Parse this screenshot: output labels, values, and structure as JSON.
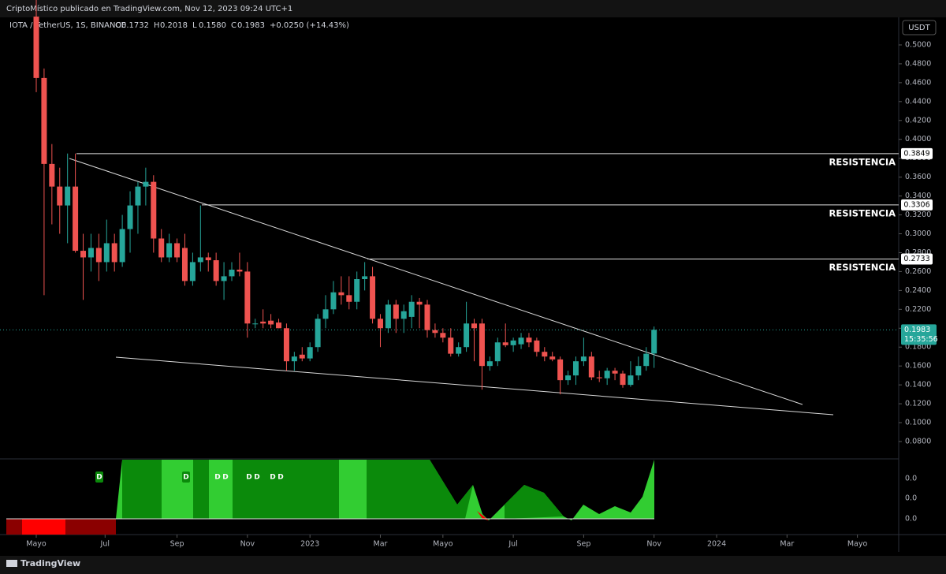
{
  "header": {
    "attribution": "CriptoMístico publicado en TradingView.com, Nov 12, 2023 09:24 UTC+1"
  },
  "footer": {
    "brand": "TradingView"
  },
  "chart_data": {
    "type": "candlestick",
    "symbol": "IOTA / TetherUS, 1S, BINANCE",
    "ohlc_legend": [
      {
        "key": "O",
        "text": "0.1732"
      },
      {
        "key": "H",
        "text": "0.2018"
      },
      {
        "key": "L",
        "text": "0.1580"
      },
      {
        "key": "C",
        "text": "0.1983"
      }
    ],
    "change": "+0.0250 (+14.43%)",
    "currency": "USDT",
    "last_price": 0.1983,
    "countdown": "15:35:56",
    "colors": {
      "up": "#26a69a",
      "down": "#ef5350"
    },
    "categories": [
      null,
      null,
      null,
      null,
      null,
      null,
      null,
      null,
      null,
      null,
      null,
      null,
      null,
      null,
      null,
      null,
      null,
      null,
      null,
      null,
      null,
      null,
      null,
      null,
      null,
      null,
      null,
      null,
      null,
      null,
      null,
      null,
      null,
      null,
      null,
      null,
      null,
      null,
      null,
      null,
      null,
      null,
      null,
      null,
      null,
      null,
      null,
      null,
      null,
      null,
      null,
      null,
      null,
      null,
      null,
      null,
      null,
      null,
      null,
      null,
      null,
      null,
      null,
      null,
      null,
      null,
      null,
      null,
      null,
      null,
      null,
      null,
      null,
      null,
      null,
      null,
      null,
      null,
      null,
      null
    ],
    "open": [
      0.53,
      0.465,
      0.374,
      0.35,
      0.33,
      0.35,
      0.282,
      0.275,
      0.285,
      0.27,
      0.29,
      0.27,
      0.305,
      0.33,
      0.35,
      0.355,
      0.295,
      0.275,
      0.29,
      0.285,
      0.25,
      0.27,
      0.275,
      0.272,
      0.25,
      0.255,
      0.262,
      0.26,
      0.205,
      0.207,
      0.208,
      0.206,
      0.2,
      0.165,
      0.172,
      0.168,
      0.18,
      0.21,
      0.22,
      0.238,
      0.235,
      0.228,
      0.252,
      0.255,
      0.21,
      0.2,
      0.225,
      0.21,
      0.212,
      0.228,
      0.225,
      0.198,
      0.195,
      0.19,
      0.173,
      0.18,
      0.205,
      0.205,
      0.16,
      0.165,
      0.185,
      0.182,
      0.183,
      0.19,
      0.187,
      0.175,
      0.17,
      0.167,
      0.145,
      0.15,
      0.165,
      0.17,
      0.148,
      0.147,
      0.155,
      0.152,
      0.14,
      0.15,
      0.16,
      0.1732
    ],
    "high": [
      0.56,
      0.475,
      0.395,
      0.37,
      0.385,
      0.385,
      0.3,
      0.3,
      0.3,
      0.315,
      0.3,
      0.32,
      0.345,
      0.355,
      0.37,
      0.362,
      0.305,
      0.3,
      0.295,
      0.3,
      0.28,
      0.33,
      0.28,
      0.28,
      0.27,
      0.27,
      0.28,
      0.27,
      0.21,
      0.22,
      0.215,
      0.21,
      0.205,
      0.175,
      0.18,
      0.185,
      0.215,
      0.235,
      0.25,
      0.255,
      0.255,
      0.26,
      0.27,
      0.265,
      0.215,
      0.23,
      0.23,
      0.225,
      0.235,
      0.232,
      0.23,
      0.205,
      0.2,
      0.2,
      0.185,
      0.228,
      0.21,
      0.21,
      0.17,
      0.19,
      0.205,
      0.19,
      0.195,
      0.195,
      0.19,
      0.18,
      0.175,
      0.17,
      0.155,
      0.17,
      0.19,
      0.175,
      0.155,
      0.158,
      0.158,
      0.155,
      0.165,
      0.17,
      0.18,
      0.2018
    ],
    "low": [
      0.45,
      0.235,
      0.31,
      0.3,
      0.29,
      0.28,
      0.23,
      0.26,
      0.25,
      0.26,
      0.26,
      0.265,
      0.28,
      0.3,
      0.33,
      0.28,
      0.27,
      0.27,
      0.27,
      0.245,
      0.245,
      0.26,
      0.26,
      0.245,
      0.23,
      0.25,
      0.255,
      0.19,
      0.2,
      0.2,
      0.2,
      0.2,
      0.155,
      0.155,
      0.165,
      0.165,
      0.175,
      0.2,
      0.215,
      0.225,
      0.22,
      0.22,
      0.24,
      0.205,
      0.18,
      0.195,
      0.195,
      0.195,
      0.2,
      0.2,
      0.19,
      0.19,
      0.185,
      0.17,
      0.17,
      0.175,
      0.165,
      0.135,
      0.155,
      0.16,
      0.18,
      0.175,
      0.178,
      0.18,
      0.17,
      0.165,
      0.165,
      0.13,
      0.14,
      0.14,
      0.16,
      0.145,
      0.143,
      0.14,
      0.145,
      0.137,
      0.138,
      0.145,
      0.155,
      0.158
    ],
    "close": [
      0.465,
      0.374,
      0.35,
      0.33,
      0.35,
      0.282,
      0.275,
      0.285,
      0.27,
      0.29,
      0.27,
      0.305,
      0.33,
      0.35,
      0.355,
      0.295,
      0.275,
      0.29,
      0.275,
      0.25,
      0.27,
      0.275,
      0.272,
      0.25,
      0.255,
      0.262,
      0.26,
      0.205,
      0.205,
      0.205,
      0.204,
      0.2,
      0.165,
      0.17,
      0.168,
      0.18,
      0.21,
      0.22,
      0.238,
      0.235,
      0.228,
      0.252,
      0.255,
      0.21,
      0.2,
      0.225,
      0.21,
      0.218,
      0.228,
      0.225,
      0.198,
      0.195,
      0.19,
      0.173,
      0.18,
      0.205,
      0.2,
      0.16,
      0.165,
      0.185,
      0.182,
      0.187,
      0.19,
      0.185,
      0.175,
      0.17,
      0.167,
      0.145,
      0.15,
      0.165,
      0.17,
      0.148,
      0.147,
      0.155,
      0.152,
      0.14,
      0.15,
      0.16,
      0.173,
      0.1983
    ],
    "ylim": [
      0.0633,
      0.5292
    ],
    "yticks": [
      {
        "value": 0.5,
        "label": "0.5000"
      },
      {
        "value": 0.48,
        "label": "0.4800"
      },
      {
        "value": 0.46,
        "label": "0.4600"
      },
      {
        "value": 0.44,
        "label": "0.4400"
      },
      {
        "value": 0.42,
        "label": "0.4200"
      },
      {
        "value": 0.4,
        "label": "0.4000"
      },
      {
        "value": 0.38,
        "label": "0.3800"
      },
      {
        "value": 0.36,
        "label": "0.3600"
      },
      {
        "value": 0.34,
        "label": "0.3400"
      },
      {
        "value": 0.32,
        "label": "0.3200"
      },
      {
        "value": 0.3,
        "label": "0.3000"
      },
      {
        "value": 0.28,
        "label": "0.2800"
      },
      {
        "value": 0.26,
        "label": "0.2600"
      },
      {
        "value": 0.24,
        "label": "0.2400"
      },
      {
        "value": 0.22,
        "label": "0.2200"
      },
      {
        "value": 0.2,
        "label": "0.2000"
      },
      {
        "value": 0.18,
        "label": "0.1800"
      },
      {
        "value": 0.16,
        "label": "0.1600"
      },
      {
        "value": 0.14,
        "label": "0.1400"
      },
      {
        "value": 0.12,
        "label": "0.1200"
      },
      {
        "value": 0.1,
        "label": "0.1000"
      },
      {
        "value": 0.08,
        "label": "0.0800"
      }
    ],
    "xticks": [
      {
        "value": 0,
        "label": "Mayo"
      },
      {
        "value": 8.8,
        "label": "Jul"
      },
      {
        "value": 18,
        "label": "Sep"
      },
      {
        "value": 27,
        "label": "Nov"
      },
      {
        "value": 35,
        "label": "2023"
      },
      {
        "value": 44,
        "label": "Mar"
      },
      {
        "value": 52,
        "label": "Mayo"
      },
      {
        "value": 61,
        "label": "Jul"
      },
      {
        "value": 70,
        "label": "Sep"
      },
      {
        "value": 79,
        "label": "Nov"
      },
      {
        "value": 87,
        "label": "2024"
      },
      {
        "value": 96,
        "label": "Mar"
      },
      {
        "value": 105,
        "label": "Mayo"
      }
    ],
    "levels": [
      {
        "value": 0.3849,
        "label": "0.3849",
        "text": "RESISTENCIA"
      },
      {
        "value": 0.3306,
        "label": "0.3306",
        "text": "RESISTENCIA"
      },
      {
        "value": 0.2733,
        "label": "0.2733",
        "text": "RESISTENCIA"
      }
    ],
    "indicator": {
      "ticks": [
        "0.0",
        "0.0",
        "0.0"
      ],
      "markers": [
        "D",
        "D",
        "D",
        "D",
        "D",
        "D",
        "D",
        "D"
      ]
    }
  }
}
